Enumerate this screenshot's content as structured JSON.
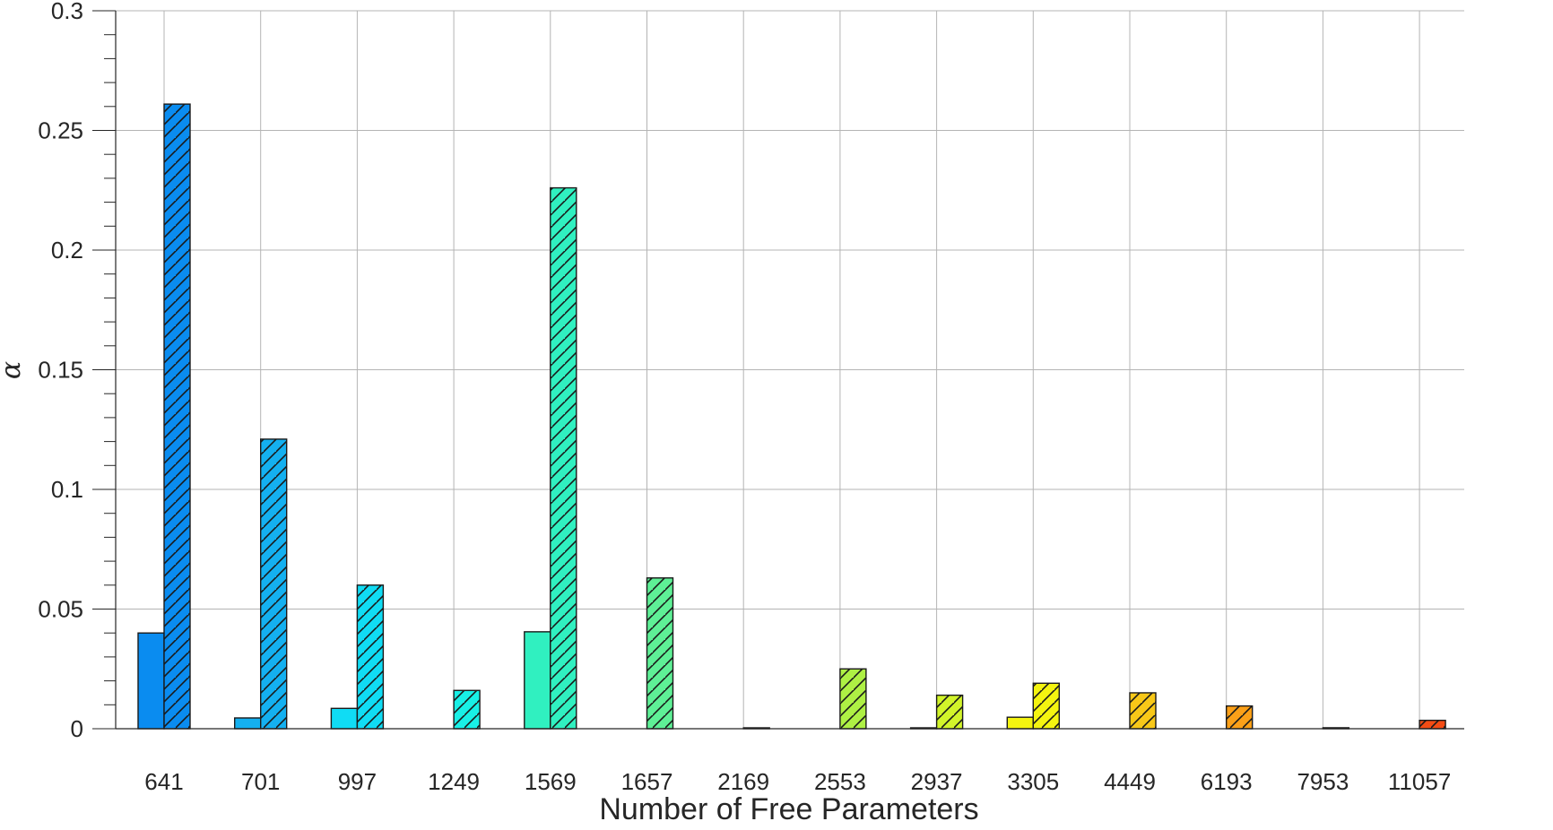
{
  "chart_data": {
    "type": "bar",
    "title": "",
    "xlabel": "Number of Free Parameters",
    "ylabel": "α",
    "ylim": [
      0,
      0.3
    ],
    "yticks": [
      0,
      0.05,
      0.1,
      0.15,
      0.2,
      0.25,
      0.3
    ],
    "ytick_labels": [
      "0",
      "0.05",
      "0.1",
      "0.15",
      "0.2",
      "0.25",
      "0.3"
    ],
    "grid": true,
    "categories": [
      "641",
      "701",
      "997",
      "1249",
      "1569",
      "1657",
      "2169",
      "2553",
      "2937",
      "3305",
      "4449",
      "6193",
      "7953",
      "11057"
    ],
    "series": [
      {
        "style": "solid",
        "values": [
          0.04,
          0.0045,
          0.0085,
          0,
          0.0405,
          0,
          0,
          0,
          0.0002,
          0.0048,
          0,
          0,
          0,
          0
        ]
      },
      {
        "style": "hatched",
        "values": [
          0.261,
          0.121,
          0.06,
          0.016,
          0.226,
          0.063,
          0.0003,
          0.025,
          0.014,
          0.019,
          0.015,
          0.0095,
          0.0004,
          0.0035
        ]
      }
    ],
    "bar_colors": [
      "#0a8cf0",
      "#14b0f0",
      "#10dcf4",
      "#18f0e6",
      "#30f0c0",
      "#5ef096",
      "#86f070",
      "#aef044",
      "#d2f42a",
      "#f4f410",
      "#f8c818",
      "#fca018",
      "#fc6e18",
      "#f44c14"
    ]
  }
}
